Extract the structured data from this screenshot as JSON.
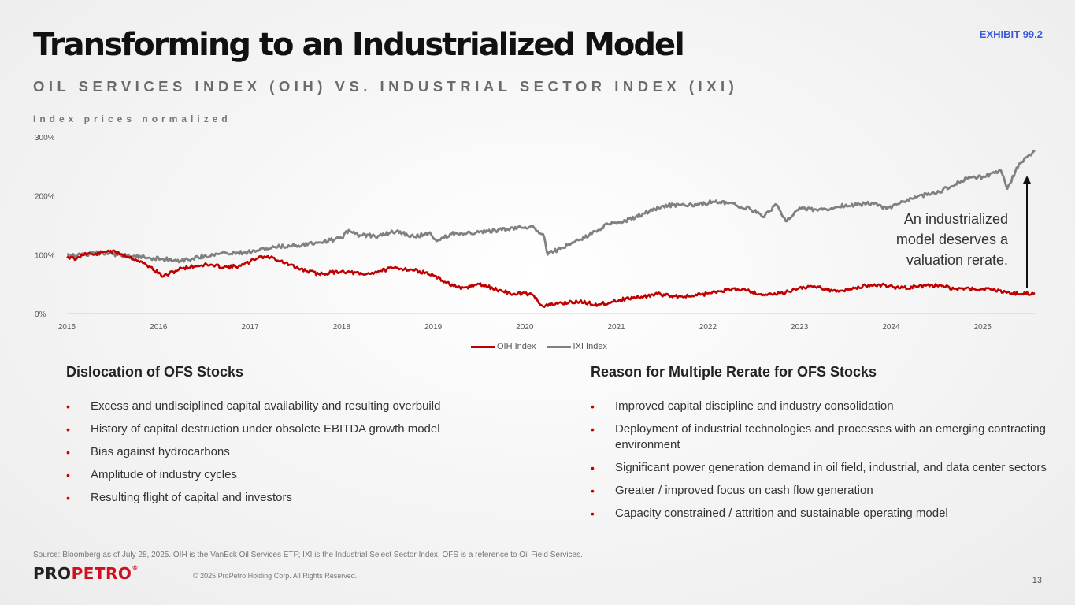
{
  "exhibit": "EXHIBIT 99.2",
  "title": "Transforming to an Industrialized Model",
  "subtitle": "OIL SERVICES INDEX (OIH) VS. INDUSTRIAL SECTOR INDEX (IXI)",
  "chart_note": "Index prices normalized",
  "annotation": "An industrialized model deserves a valuation rerate.",
  "colors": {
    "oih": "#c00000",
    "ixi": "#808080",
    "bullet": "#c00000",
    "brand_red": "#d01020"
  },
  "chart_data": {
    "type": "line",
    "title": "",
    "xlabel": "",
    "ylabel": "",
    "ylim": [
      0,
      300
    ],
    "xlim": [
      2015.0,
      2025.57
    ],
    "y_ticks": [
      "0%",
      "100%",
      "200%",
      "300%"
    ],
    "x_ticks": [
      "2015",
      "2016",
      "2017",
      "2018",
      "2019",
      "2020",
      "2021",
      "2022",
      "2023",
      "2024",
      "2025"
    ],
    "legend_position": "bottom",
    "grid": false,
    "series": [
      {
        "name": "OIH Index",
        "x": [
          2015.0,
          2015.1,
          2015.2,
          2015.3,
          2015.45,
          2015.6,
          2015.75,
          2015.9,
          2016.05,
          2016.25,
          2016.5,
          2016.75,
          2016.9,
          2017.0,
          2017.1,
          2017.25,
          2017.5,
          2017.75,
          2018.0,
          2018.1,
          2018.25,
          2018.4,
          2018.6,
          2018.85,
          2019.0,
          2019.1,
          2019.3,
          2019.5,
          2019.75,
          2019.9,
          2020.0,
          2020.1,
          2020.2,
          2020.4,
          2020.6,
          2020.8,
          2020.95,
          2021.1,
          2021.3,
          2021.45,
          2021.6,
          2021.8,
          2022.0,
          2022.2,
          2022.4,
          2022.55,
          2022.7,
          2022.85,
          2023.0,
          2023.2,
          2023.4,
          2023.6,
          2023.75,
          2023.9,
          2024.1,
          2024.3,
          2024.5,
          2024.7,
          2024.9,
          2025.1,
          2025.25,
          2025.4,
          2025.57
        ],
        "y": [
          97,
          92,
          103,
          100,
          107,
          101,
          92,
          80,
          63,
          77,
          83,
          79,
          81,
          88,
          97,
          95,
          78,
          67,
          72,
          70,
          66,
          72,
          78,
          72,
          65,
          56,
          42,
          50,
          38,
          32,
          35,
          30,
          12,
          18,
          20,
          15,
          20,
          25,
          29,
          33,
          30,
          29,
          34,
          40,
          42,
          33,
          32,
          36,
          44,
          46,
          37,
          43,
          48,
          49,
          43,
          46,
          48,
          42,
          42,
          41,
          37,
          33,
          35
        ]
      },
      {
        "name": "IXI Index",
        "x": [
          2015.0,
          2015.15,
          2015.3,
          2015.5,
          2015.7,
          2015.85,
          2016.05,
          2016.25,
          2016.5,
          2016.75,
          2016.95,
          2017.1,
          2017.3,
          2017.5,
          2017.75,
          2018.0,
          2018.05,
          2018.2,
          2018.4,
          2018.6,
          2018.8,
          2018.95,
          2019.05,
          2019.2,
          2019.5,
          2019.75,
          2019.95,
          2020.1,
          2020.2,
          2020.25,
          2020.4,
          2020.6,
          2020.8,
          2020.95,
          2021.1,
          2021.3,
          2021.5,
          2021.7,
          2021.9,
          2022.05,
          2022.25,
          2022.4,
          2022.45,
          2022.6,
          2022.75,
          2022.85,
          2023.0,
          2023.2,
          2023.4,
          2023.6,
          2023.8,
          2023.95,
          2024.1,
          2024.3,
          2024.5,
          2024.7,
          2024.85,
          2025.0,
          2025.2,
          2025.27,
          2025.4,
          2025.57
        ],
        "y": [
          100,
          99,
          103,
          101,
          97,
          95,
          93,
          90,
          98,
          103,
          104,
          108,
          113,
          116,
          121,
          128,
          140,
          133,
          132,
          140,
          130,
          137,
          124,
          135,
          138,
          142,
          148,
          146,
          135,
          100,
          112,
          125,
          142,
          155,
          158,
          170,
          183,
          185,
          185,
          190,
          188,
          178,
          180,
          164,
          185,
          157,
          180,
          175,
          182,
          184,
          188,
          178,
          188,
          200,
          205,
          220,
          232,
          232,
          243,
          212,
          255,
          275
        ]
      }
    ]
  },
  "left_col": {
    "heading": "Dislocation of OFS Stocks",
    "items": [
      "Excess and undisciplined capital availability and resulting overbuild",
      "History of capital destruction under obsolete EBITDA growth model",
      "Bias against hydrocarbons",
      "Amplitude of industry cycles",
      "Resulting flight of capital and investors"
    ]
  },
  "right_col": {
    "heading": "Reason for Multiple Rerate for OFS Stocks",
    "items": [
      "Improved capital discipline and industry consolidation",
      "Deployment of industrial technologies and processes with an emerging contracting environment",
      "Significant power generation demand in oil field, industrial, and data center sectors",
      "Greater / improved focus on cash flow generation",
      "Capacity constrained / attrition and sustainable operating model"
    ]
  },
  "bullet": "•",
  "footer": {
    "source": "Source: Bloomberg as of July 28, 2025. OIH is the VanEck Oil Services ETF; IXI is the Industrial Select Sector Index. OFS is a reference to Oil Field Services.",
    "logo_pro": "PRO",
    "logo_petro": "PETRO",
    "logo_mark": "®",
    "copyright": "© 2025 ProPetro Holding Corp. All Rights Reserved.",
    "page": "13"
  }
}
